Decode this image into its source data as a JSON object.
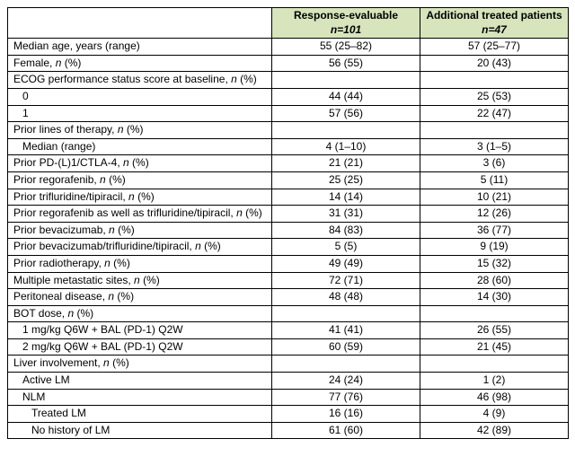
{
  "header": {
    "col1_line1": "Response-evaluable",
    "col1_line2": "n=101",
    "col2_line1": "Additional treated patients",
    "col2_line2": "n=47",
    "bg_color": "#d7e4bc"
  },
  "rows": [
    {
      "label": "Median age, years (range)",
      "indent": 0,
      "v1": "55 (25–82)",
      "v2": "57 (25–77)"
    },
    {
      "label": "Female, n (%)",
      "indent": 0,
      "v1": "56 (55)",
      "v2": "20 (43)"
    },
    {
      "label": "ECOG performance status score at baseline, n (%)",
      "indent": 0,
      "v1": "",
      "v2": ""
    },
    {
      "label": "0",
      "indent": 1,
      "v1": "44 (44)",
      "v2": "25 (53)"
    },
    {
      "label": "1",
      "indent": 1,
      "v1": "57 (56)",
      "v2": "22 (47)"
    },
    {
      "label": "Prior lines of therapy, n (%)",
      "indent": 0,
      "v1": "",
      "v2": ""
    },
    {
      "label": "Median (range)",
      "indent": 1,
      "v1": "4 (1–10)",
      "v2": "3 (1–5)"
    },
    {
      "label": "Prior PD-(L)1/CTLA-4, n (%)",
      "indent": 0,
      "v1": "21 (21)",
      "v2": "3 (6)"
    },
    {
      "label": "Prior regorafenib, n (%)",
      "indent": 0,
      "v1": "25 (25)",
      "v2": "5 (11)"
    },
    {
      "label": "Prior trifluridine/tipiracil, n (%)",
      "indent": 0,
      "v1": "14 (14)",
      "v2": "10 (21)"
    },
    {
      "label": "Prior regorafenib as well as trifluridine/tipiracil, n (%)",
      "indent": 0,
      "v1": "31 (31)",
      "v2": "12 (26)"
    },
    {
      "label": "Prior bevacizumab, n (%)",
      "indent": 0,
      "v1": "84 (83)",
      "v2": "36 (77)"
    },
    {
      "label": "Prior bevacizumab/trifluridine/tipiracil, n (%)",
      "indent": 0,
      "v1": "5 (5)",
      "v2": "9 (19)"
    },
    {
      "label": "Prior radiotherapy, n (%)",
      "indent": 0,
      "v1": "49 (49)",
      "v2": "15 (32)"
    },
    {
      "label": "Multiple metastatic sites, n (%)",
      "indent": 0,
      "v1": "72 (71)",
      "v2": "28 (60)"
    },
    {
      "label": "Peritoneal disease, n (%)",
      "indent": 0,
      "v1": "48 (48)",
      "v2": "14 (30)"
    },
    {
      "label": "BOT dose, n (%)",
      "indent": 0,
      "v1": "",
      "v2": ""
    },
    {
      "label": "1 mg/kg Q6W + BAL (PD-1) Q2W",
      "indent": 1,
      "v1": "41 (41)",
      "v2": "26 (55)"
    },
    {
      "label": "2 mg/kg Q6W + BAL (PD-1) Q2W",
      "indent": 1,
      "v1": "60 (59)",
      "v2": "21 (45)"
    },
    {
      "label": "Liver involvement, n (%)",
      "indent": 0,
      "v1": "",
      "v2": ""
    },
    {
      "label": "Active LM",
      "indent": 1,
      "v1": "24 (24)",
      "v2": "1 (2)"
    },
    {
      "label": "NLM",
      "indent": 1,
      "v1": "77 (76)",
      "v2": "46 (98)"
    },
    {
      "label": "Treated LM",
      "indent": 2,
      "v1": "16 (16)",
      "v2": "4 (9)"
    },
    {
      "label": "No history of LM",
      "indent": 2,
      "v1": "61 (60)",
      "v2": "42 (89)"
    }
  ]
}
